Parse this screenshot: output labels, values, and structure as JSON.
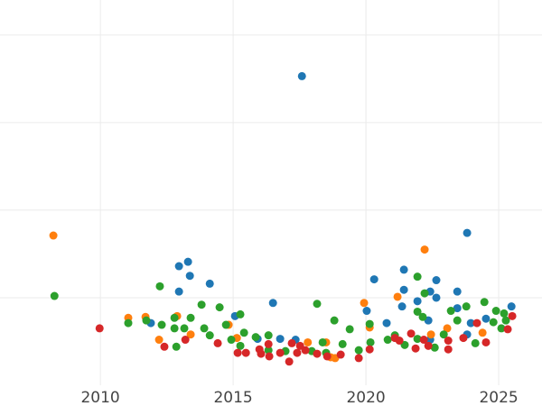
{
  "chart_data": {
    "type": "scatter",
    "xlim": [
      2006.22,
      2026.63
    ],
    "ylim": [
      0,
      4.4
    ],
    "xticks": [
      2010,
      2015,
      2020,
      2025
    ],
    "yticks": [
      1,
      2,
      3,
      4
    ],
    "ytick_labels": false,
    "grid": true,
    "series": [
      {
        "color": "#1f77b4",
        "x": [
          2017.59,
          2023.81,
          2012.96,
          2013.3,
          2013.37,
          2012.96,
          2014.12,
          2016.5,
          2015.07,
          2020.31,
          2020.03,
          2021.43,
          2021.43,
          2021.36,
          2020.78,
          2021.94,
          2022.42,
          2022.65,
          2022.65,
          2022.35,
          2023.44,
          2023.44,
          2023.95,
          2024.52,
          2025.48,
          2011.9,
          2016.77,
          2017.35,
          2015.92,
          2023.81,
          2022.42
        ],
        "values": [
          3.53,
          1.74,
          1.36,
          1.41,
          1.25,
          1.07,
          1.16,
          0.94,
          0.79,
          1.21,
          0.85,
          1.32,
          1.09,
          0.9,
          0.71,
          0.96,
          1.07,
          1.2,
          1.0,
          0.74,
          1.07,
          0.88,
          0.71,
          0.76,
          0.9,
          0.71,
          0.53,
          0.52,
          0.53,
          0.58,
          0.52
        ]
      },
      {
        "color": "#ff7f0e",
        "x": [
          2008.23,
          2022.21,
          2021.19,
          2019.93,
          2011.05,
          2011.7,
          2012.89,
          2012.21,
          2013.4,
          2014.83,
          2015.14,
          2017.81,
          2018.5,
          2020.14,
          2023.06,
          2024.39,
          2018.84,
          2022.45,
          2018.67
        ],
        "values": [
          1.71,
          1.55,
          1.01,
          0.94,
          0.77,
          0.78,
          0.79,
          0.52,
          0.58,
          0.69,
          0.54,
          0.49,
          0.49,
          0.66,
          0.65,
          0.6,
          0.31,
          0.58,
          0.32
        ]
      },
      {
        "color": "#2ca02c",
        "x": [
          2008.27,
          2012.24,
          2011.05,
          2011.73,
          2012.31,
          2012.79,
          2012.79,
          2012.86,
          2013.16,
          2013.4,
          2013.81,
          2013.91,
          2014.12,
          2014.49,
          2014.73,
          2014.93,
          2015.27,
          2015.41,
          2015.27,
          2015.85,
          2016.33,
          2016.33,
          2016.97,
          2017.96,
          2018.16,
          2018.37,
          2018.5,
          2018.81,
          2019.12,
          2019.39,
          2019.73,
          2020.14,
          2020.17,
          2020.82,
          2021.09,
          2021.46,
          2021.94,
          2022.21,
          2021.94,
          2022.14,
          2021.94,
          2022.59,
          2022.93,
          2023.2,
          2023.44,
          2023.78,
          2024.12,
          2024.46,
          2024.8,
          2024.9,
          2025.1,
          2025.2,
          2025.27
        ],
        "values": [
          1.02,
          1.13,
          0.71,
          0.74,
          0.69,
          0.77,
          0.65,
          0.44,
          0.65,
          0.77,
          0.92,
          0.65,
          0.57,
          0.89,
          0.69,
          0.52,
          0.81,
          0.6,
          0.45,
          0.55,
          0.57,
          0.4,
          0.39,
          0.39,
          0.93,
          0.49,
          0.37,
          0.74,
          0.47,
          0.64,
          0.4,
          0.7,
          0.49,
          0.52,
          0.57,
          0.46,
          1.24,
          1.05,
          0.84,
          0.78,
          0.53,
          0.43,
          0.58,
          0.85,
          0.74,
          0.9,
          0.48,
          0.95,
          0.72,
          0.85,
          0.65,
          0.82,
          0.74
        ]
      },
      {
        "color": "#d62728",
        "x": [
          2009.97,
          2012.41,
          2013.2,
          2014.42,
          2015.17,
          2015.48,
          2015.99,
          2016.05,
          2016.36,
          2016.33,
          2016.77,
          2017.11,
          2017.21,
          2017.41,
          2017.52,
          2017.72,
          2018.16,
          2018.54,
          2019.05,
          2019.73,
          2020.14,
          2021.09,
          2021.26,
          2021.7,
          2021.87,
          2022.18,
          2022.35,
          2023.1,
          2023.1,
          2023.67,
          2024.18,
          2024.52,
          2025.34,
          2025.51
        ],
        "values": [
          0.65,
          0.44,
          0.52,
          0.48,
          0.37,
          0.37,
          0.41,
          0.36,
          0.33,
          0.47,
          0.37,
          0.27,
          0.48,
          0.37,
          0.45,
          0.4,
          0.36,
          0.33,
          0.35,
          0.31,
          0.41,
          0.54,
          0.51,
          0.59,
          0.42,
          0.52,
          0.45,
          0.51,
          0.41,
          0.54,
          0.71,
          0.49,
          0.64,
          0.79
        ]
      }
    ]
  }
}
